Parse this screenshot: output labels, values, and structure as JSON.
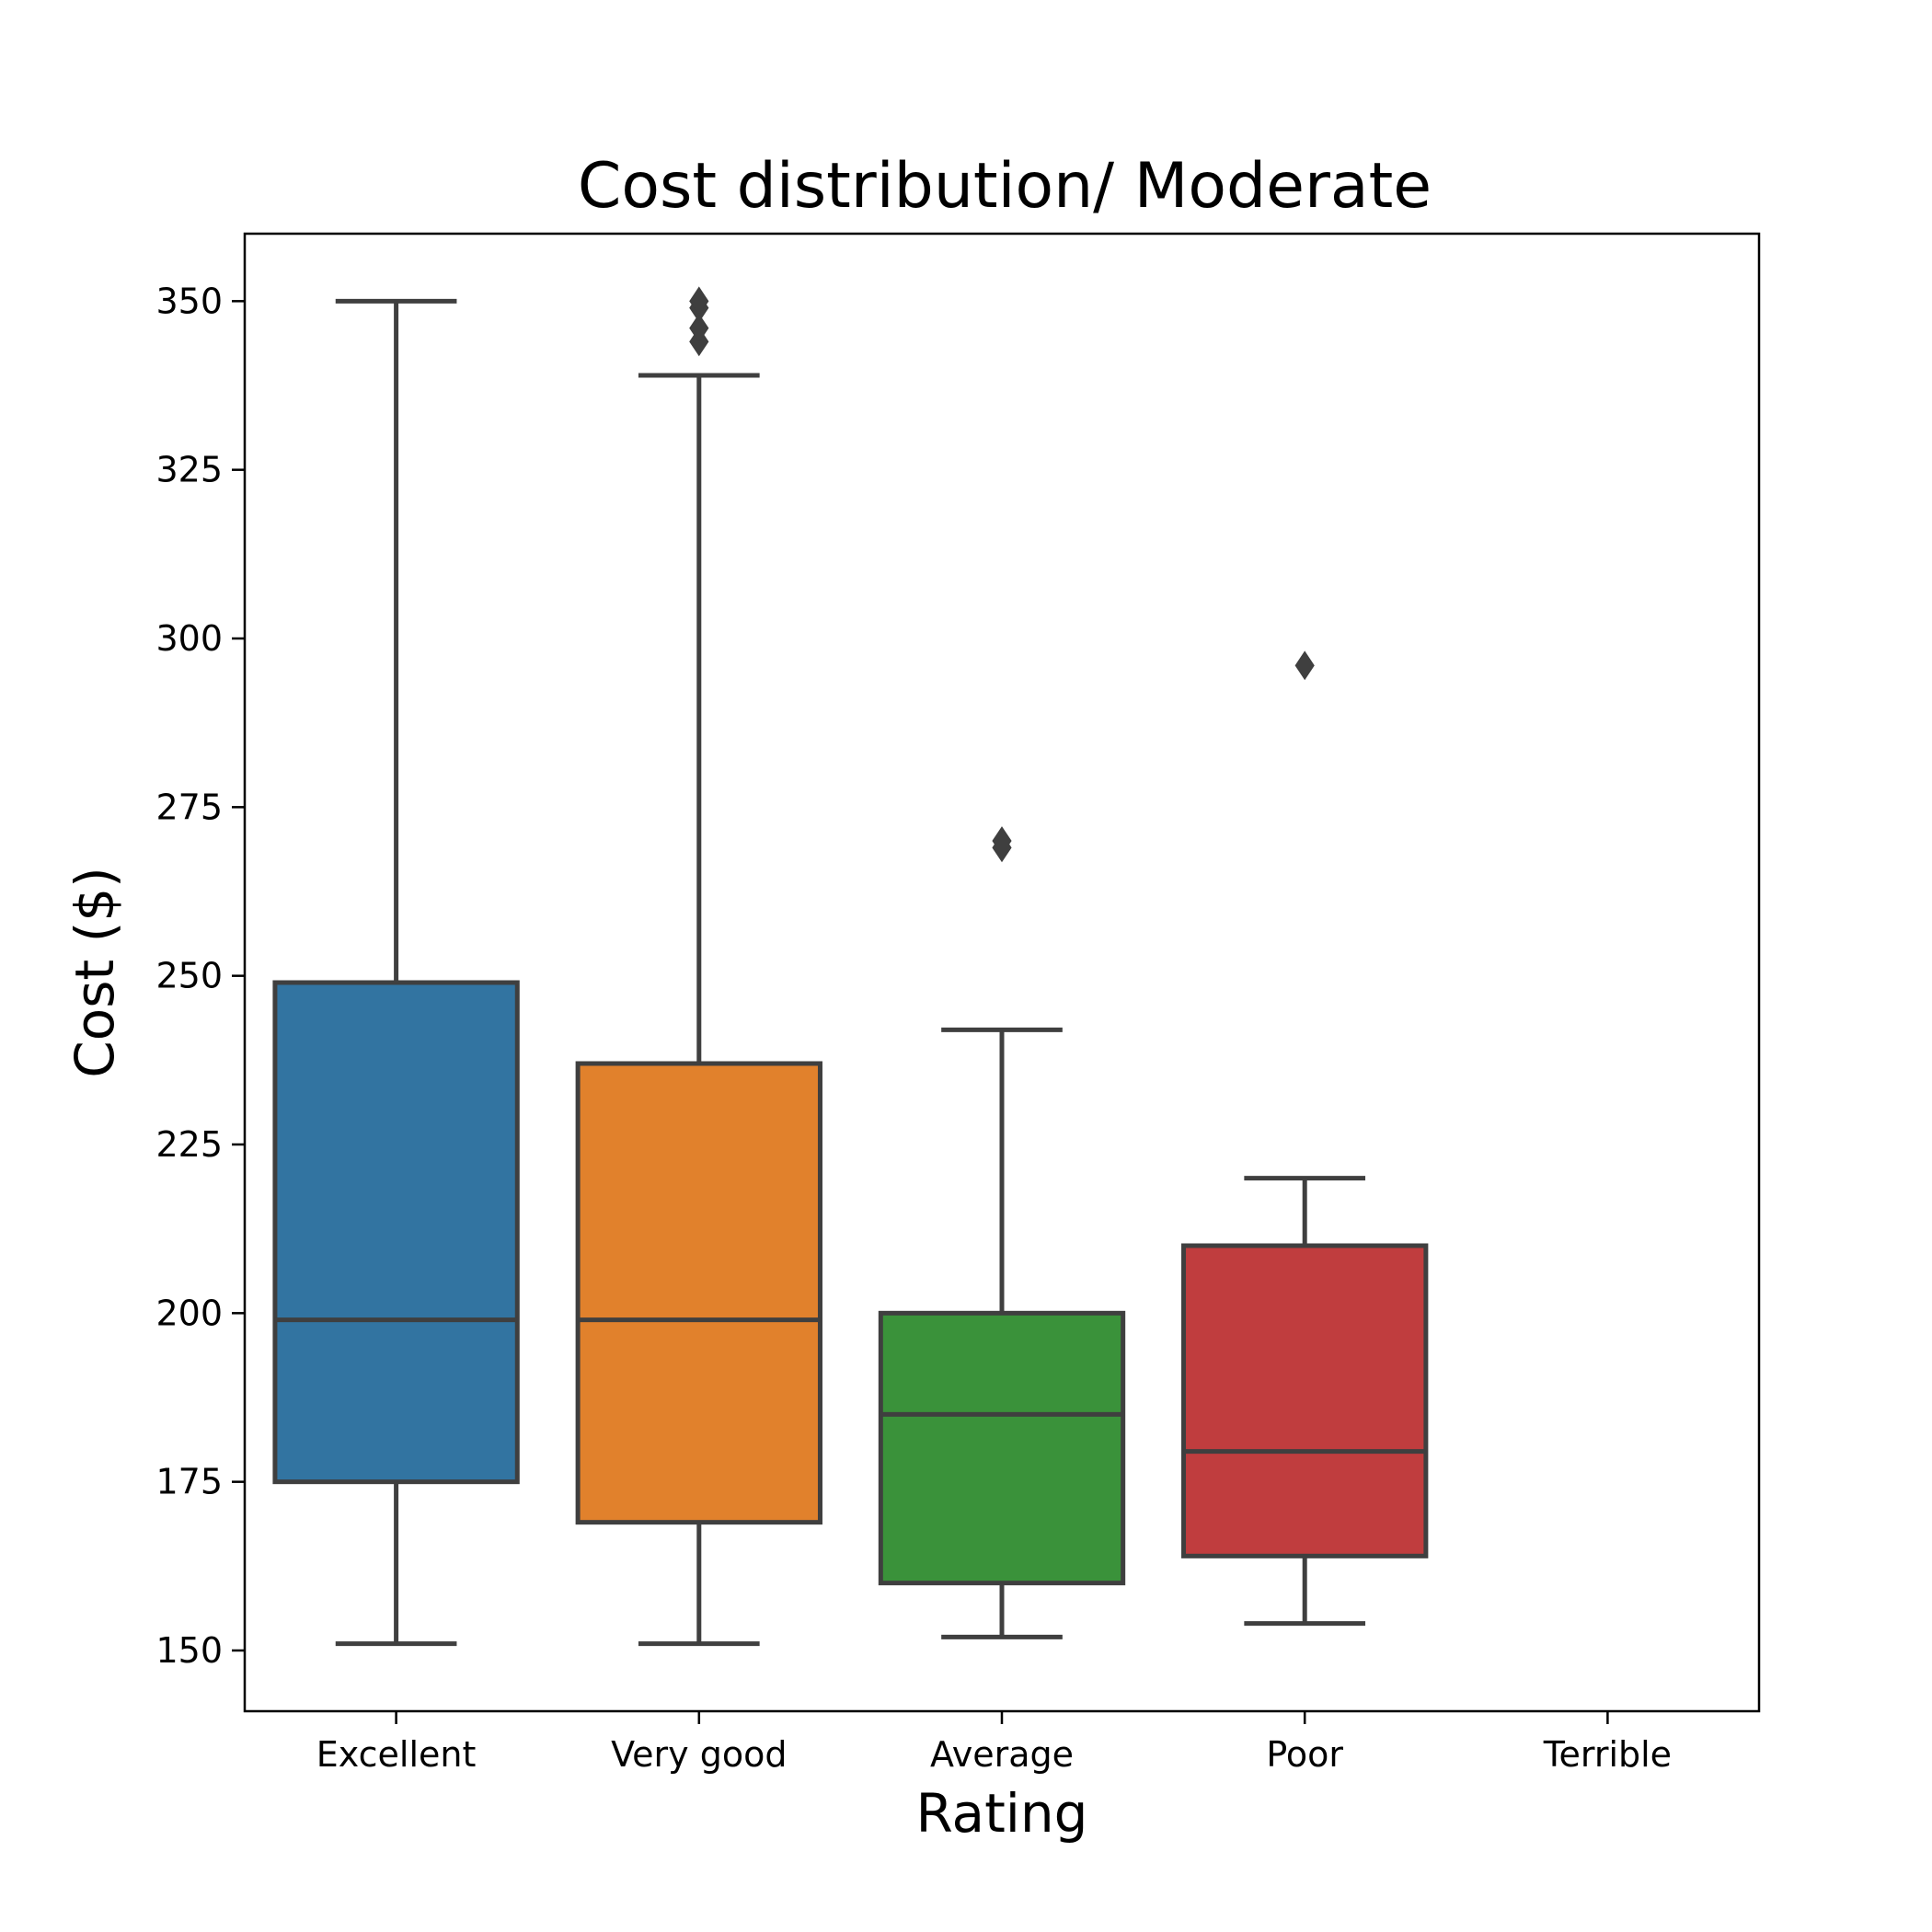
{
  "chart_data": {
    "type": "box",
    "title": "Cost distribution/ Moderate",
    "xlabel": "Rating",
    "ylabel": "Cost ($)",
    "ylim": [
      141,
      360
    ],
    "yticks": [
      150,
      175,
      200,
      225,
      250,
      275,
      300,
      325,
      350
    ],
    "categories": [
      "Excellent",
      "Very good",
      "Average",
      "Poor",
      "Terrible"
    ],
    "boxes": [
      {
        "category": "Excellent",
        "whisker_low": 151,
        "q1": 175,
        "median": 199,
        "q3": 249,
        "whisker_high": 350,
        "outliers": [],
        "color": "#3274a1"
      },
      {
        "category": "Very good",
        "whisker_low": 151,
        "q1": 169,
        "median": 199,
        "q3": 237,
        "whisker_high": 339,
        "outliers": [
          344,
          346,
          349,
          350
        ],
        "color": "#e1812c"
      },
      {
        "category": "Average",
        "whisker_low": 152,
        "q1": 160,
        "median": 185,
        "q3": 200,
        "whisker_high": 242,
        "outliers": [
          269,
          270
        ],
        "color": "#3a923a"
      },
      {
        "category": "Poor",
        "whisker_low": 154,
        "q1": 164,
        "median": 179.5,
        "q3": 210,
        "whisker_high": 220,
        "outliers": [
          296
        ],
        "color": "#c03d3e"
      }
    ],
    "line_color": "#3f3f3f",
    "grid": false,
    "legend": "none"
  }
}
